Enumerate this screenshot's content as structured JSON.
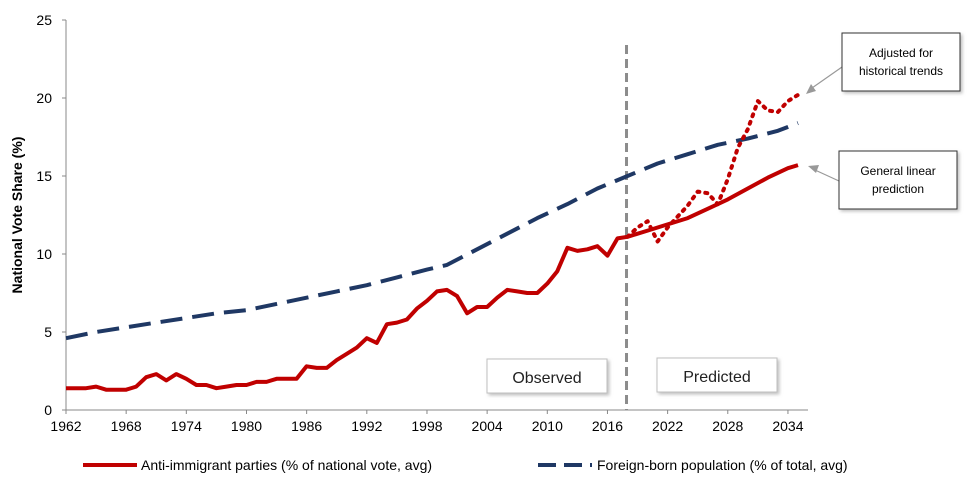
{
  "chart_data": {
    "type": "line",
    "title": "",
    "xlabel": "",
    "ylabel": "National Vote Share (%)",
    "xlim": [
      1962,
      2036
    ],
    "ylim": [
      0,
      25
    ],
    "x_ticks": [
      1962,
      1968,
      1974,
      1980,
      1986,
      1992,
      1998,
      2004,
      2010,
      2016,
      2022,
      2028,
      2034
    ],
    "y_ticks": [
      0,
      5,
      10,
      15,
      20,
      25
    ],
    "divider_year": 2018,
    "regions": {
      "observed": "Observed",
      "predicted": "Predicted"
    },
    "annotations": {
      "adjusted": [
        "Adjusted for",
        "historical trends"
      ],
      "linear": [
        "General linear",
        "prediction"
      ]
    },
    "series": [
      {
        "name": "Anti-immigrant parties (% of national vote, avg)",
        "color": "#c00000",
        "style": "solid",
        "points": [
          [
            1962,
            1.4
          ],
          [
            1963,
            1.4
          ],
          [
            1964,
            1.4
          ],
          [
            1965,
            1.5
          ],
          [
            1966,
            1.3
          ],
          [
            1967,
            1.3
          ],
          [
            1968,
            1.3
          ],
          [
            1969,
            1.5
          ],
          [
            1970,
            2.1
          ],
          [
            1971,
            2.3
          ],
          [
            1972,
            1.9
          ],
          [
            1973,
            2.3
          ],
          [
            1974,
            2.0
          ],
          [
            1975,
            1.6
          ],
          [
            1976,
            1.6
          ],
          [
            1977,
            1.4
          ],
          [
            1978,
            1.5
          ],
          [
            1979,
            1.6
          ],
          [
            1980,
            1.6
          ],
          [
            1981,
            1.8
          ],
          [
            1982,
            1.8
          ],
          [
            1983,
            2.0
          ],
          [
            1984,
            2.0
          ],
          [
            1985,
            2.0
          ],
          [
            1986,
            2.8
          ],
          [
            1987,
            2.7
          ],
          [
            1988,
            2.7
          ],
          [
            1989,
            3.2
          ],
          [
            1990,
            3.6
          ],
          [
            1991,
            4.0
          ],
          [
            1992,
            4.6
          ],
          [
            1993,
            4.3
          ],
          [
            1994,
            5.5
          ],
          [
            1995,
            5.6
          ],
          [
            1996,
            5.8
          ],
          [
            1997,
            6.5
          ],
          [
            1998,
            7.0
          ],
          [
            1999,
            7.6
          ],
          [
            2000,
            7.7
          ],
          [
            2001,
            7.3
          ],
          [
            2002,
            6.2
          ],
          [
            2003,
            6.6
          ],
          [
            2004,
            6.6
          ],
          [
            2005,
            7.2
          ],
          [
            2006,
            7.7
          ],
          [
            2007,
            7.6
          ],
          [
            2008,
            7.5
          ],
          [
            2009,
            7.5
          ],
          [
            2010,
            8.1
          ],
          [
            2011,
            8.9
          ],
          [
            2012,
            10.4
          ],
          [
            2013,
            10.2
          ],
          [
            2014,
            10.3
          ],
          [
            2015,
            10.5
          ],
          [
            2016,
            9.9
          ],
          [
            2017,
            11.0
          ],
          [
            2018,
            11.1
          ]
        ]
      },
      {
        "name": "General linear prediction",
        "color": "#c00000",
        "style": "solid",
        "points": [
          [
            2018,
            11.1
          ],
          [
            2020,
            11.5
          ],
          [
            2022,
            11.9
          ],
          [
            2024,
            12.3
          ],
          [
            2026,
            12.9
          ],
          [
            2028,
            13.5
          ],
          [
            2030,
            14.2
          ],
          [
            2032,
            14.9
          ],
          [
            2034,
            15.5
          ],
          [
            2035,
            15.7
          ]
        ]
      },
      {
        "name": "Adjusted for historical trends",
        "color": "#c00000",
        "style": "dotted",
        "points": [
          [
            2018,
            11.1
          ],
          [
            2019,
            11.7
          ],
          [
            2020,
            12.1
          ],
          [
            2021,
            10.8
          ],
          [
            2022,
            11.7
          ],
          [
            2023,
            12.4
          ],
          [
            2024,
            13.1
          ],
          [
            2025,
            14.0
          ],
          [
            2026,
            13.9
          ],
          [
            2027,
            13.2
          ],
          [
            2028,
            14.8
          ],
          [
            2029,
            16.8
          ],
          [
            2030,
            18.0
          ],
          [
            2031,
            19.8
          ],
          [
            2032,
            19.2
          ],
          [
            2033,
            19.1
          ],
          [
            2034,
            19.8
          ],
          [
            2035,
            20.2
          ]
        ]
      },
      {
        "name": "Foreign-born population (% of total, avg)",
        "color": "#1f3864",
        "style": "dashed",
        "points": [
          [
            1962,
            4.6
          ],
          [
            1965,
            5.0
          ],
          [
            1968,
            5.3
          ],
          [
            1971,
            5.6
          ],
          [
            1974,
            5.9
          ],
          [
            1977,
            6.2
          ],
          [
            1980,
            6.4
          ],
          [
            1983,
            6.8
          ],
          [
            1986,
            7.2
          ],
          [
            1989,
            7.6
          ],
          [
            1992,
            8.0
          ],
          [
            1995,
            8.5
          ],
          [
            1998,
            9.0
          ],
          [
            2000,
            9.3
          ],
          [
            2003,
            10.3
          ],
          [
            2006,
            11.3
          ],
          [
            2009,
            12.3
          ],
          [
            2012,
            13.2
          ],
          [
            2015,
            14.2
          ],
          [
            2018,
            15.0
          ],
          [
            2021,
            15.8
          ],
          [
            2024,
            16.4
          ],
          [
            2027,
            17.0
          ],
          [
            2030,
            17.4
          ],
          [
            2033,
            17.9
          ],
          [
            2035,
            18.4
          ]
        ]
      }
    ],
    "legend": [
      {
        "label": "Anti-immigrant parties (% of national vote, avg)",
        "color": "#c00000",
        "style": "solid"
      },
      {
        "label": "Foreign-born population (% of total, avg)",
        "color": "#1f3864",
        "style": "dashed"
      }
    ]
  }
}
